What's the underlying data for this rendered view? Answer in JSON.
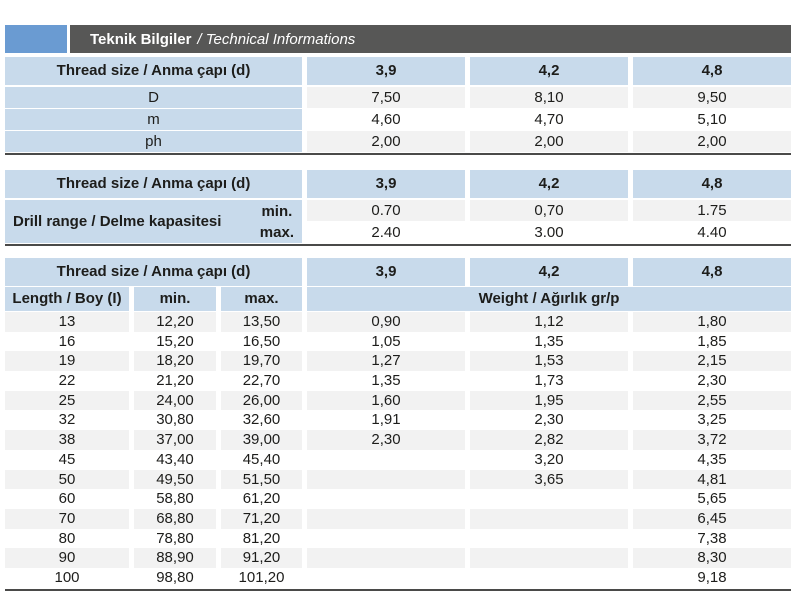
{
  "title": {
    "main": "Teknik Bilgiler",
    "sub": "/ Technical Informations"
  },
  "colors": {
    "accent_blue": "#6a9bd2",
    "header_gray": "#575756",
    "cell_blue": "#c8daeb",
    "stripe_gray": "#f2f2f2",
    "rule_dark": "#4a4a49"
  },
  "table1": {
    "header": [
      "Thread size / Anma çapı (d)",
      "3,9",
      "4,2",
      "4,8"
    ],
    "rows": [
      [
        "D",
        "7,50",
        "8,10",
        "9,50"
      ],
      [
        "m",
        "4,60",
        "4,70",
        "5,10"
      ],
      [
        "ph",
        "2,00",
        "2,00",
        "2,00"
      ]
    ]
  },
  "table2": {
    "header": [
      "Thread size / Anma çapı (d)",
      "3,9",
      "4,2",
      "4,8"
    ],
    "row_label": "Drill range / Delme kapasitesi",
    "sub_rows": [
      {
        "label": "min.",
        "values": [
          "0.70",
          "0,70",
          "1.75"
        ]
      },
      {
        "label": "max.",
        "values": [
          "2.40",
          "3.00",
          "4.40"
        ]
      }
    ]
  },
  "table3": {
    "header": [
      "Thread size / Anma çapı (d)",
      "3,9",
      "4,2",
      "4,8"
    ],
    "columns": {
      "length_label": "Length / Boy (I)",
      "min_label": "min.",
      "max_label": "max.",
      "weight_label": "Weight / Ağırlık gr/p"
    },
    "rows": [
      [
        "13",
        "12,20",
        "13,50",
        "0,90",
        "1,12",
        "1,80"
      ],
      [
        "16",
        "15,20",
        "16,50",
        "1,05",
        "1,35",
        "1,85"
      ],
      [
        "19",
        "18,20",
        "19,70",
        "1,27",
        "1,53",
        "2,15"
      ],
      [
        "22",
        "21,20",
        "22,70",
        "1,35",
        "1,73",
        "2,30"
      ],
      [
        "25",
        "24,00",
        "26,00",
        "1,60",
        "1,95",
        "2,55"
      ],
      [
        "32",
        "30,80",
        "32,60",
        "1,91",
        "2,30",
        "3,25"
      ],
      [
        "38",
        "37,00",
        "39,00",
        "2,30",
        "2,82",
        "3,72"
      ],
      [
        "45",
        "43,40",
        "45,40",
        "",
        "3,20",
        "4,35"
      ],
      [
        "50",
        "49,50",
        "51,50",
        "",
        "3,65",
        "4,81"
      ],
      [
        "60",
        "58,80",
        "61,20",
        "",
        "",
        "5,65"
      ],
      [
        "70",
        "68,80",
        "71,20",
        "",
        "",
        "6,45"
      ],
      [
        "80",
        "78,80",
        "81,20",
        "",
        "",
        "7,38"
      ],
      [
        "90",
        "88,90",
        "91,20",
        "",
        "",
        "8,30"
      ],
      [
        "100",
        "98,80",
        "101,20",
        "",
        "",
        "9,18"
      ]
    ]
  }
}
